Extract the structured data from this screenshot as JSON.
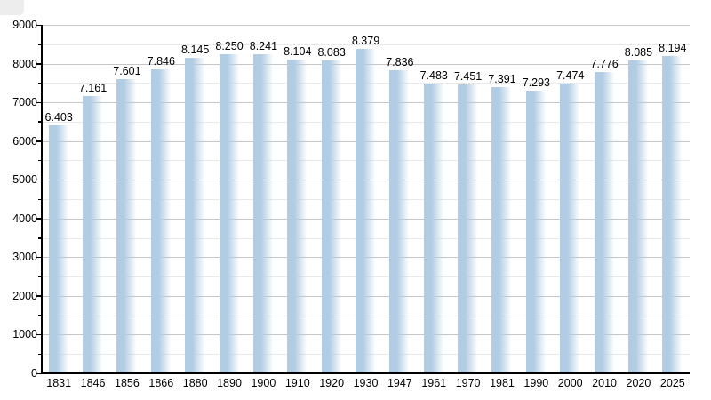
{
  "chart_data": {
    "type": "bar",
    "title": "",
    "xlabel": "",
    "ylabel": "",
    "categories": [
      "1831",
      "1846",
      "1856",
      "1866",
      "1880",
      "1890",
      "1900",
      "1910",
      "1920",
      "1930",
      "1947",
      "1961",
      "1970",
      "1981",
      "1990",
      "2000",
      "2010",
      "2020",
      "2025"
    ],
    "values": [
      6403,
      7161,
      7601,
      7846,
      8145,
      8250,
      8241,
      8104,
      8083,
      8379,
      7836,
      7483,
      7451,
      7391,
      7293,
      7474,
      7776,
      8085,
      8194
    ],
    "value_labels": [
      "6.403",
      "7.161",
      "7.601",
      "7.846",
      "8.145",
      "8.250",
      "8.241",
      "8.104",
      "8.083",
      "8.379",
      "7.836",
      "7.483",
      "7.451",
      "7.391",
      "7.293",
      "7.474",
      "7.776",
      "8.085",
      "8.194"
    ],
    "ylim": [
      0,
      9000
    ],
    "y_tick_step": 1000,
    "y_minor_tick_step": 500,
    "y_tick_labels": [
      "0",
      "1000",
      "2000",
      "3000",
      "4000",
      "5000",
      "6000",
      "7000",
      "8000",
      "9000"
    ],
    "grid": "horizontal major and minor gridlines",
    "legend": "none",
    "colors": {
      "bar": "#b2cde3",
      "major_grid": "#c6c6c6",
      "minor_grid": "#e9e9e9",
      "axis": "#000000",
      "text": "#000000",
      "background": "#ffffff",
      "corner_artifact": "#ededed"
    }
  }
}
